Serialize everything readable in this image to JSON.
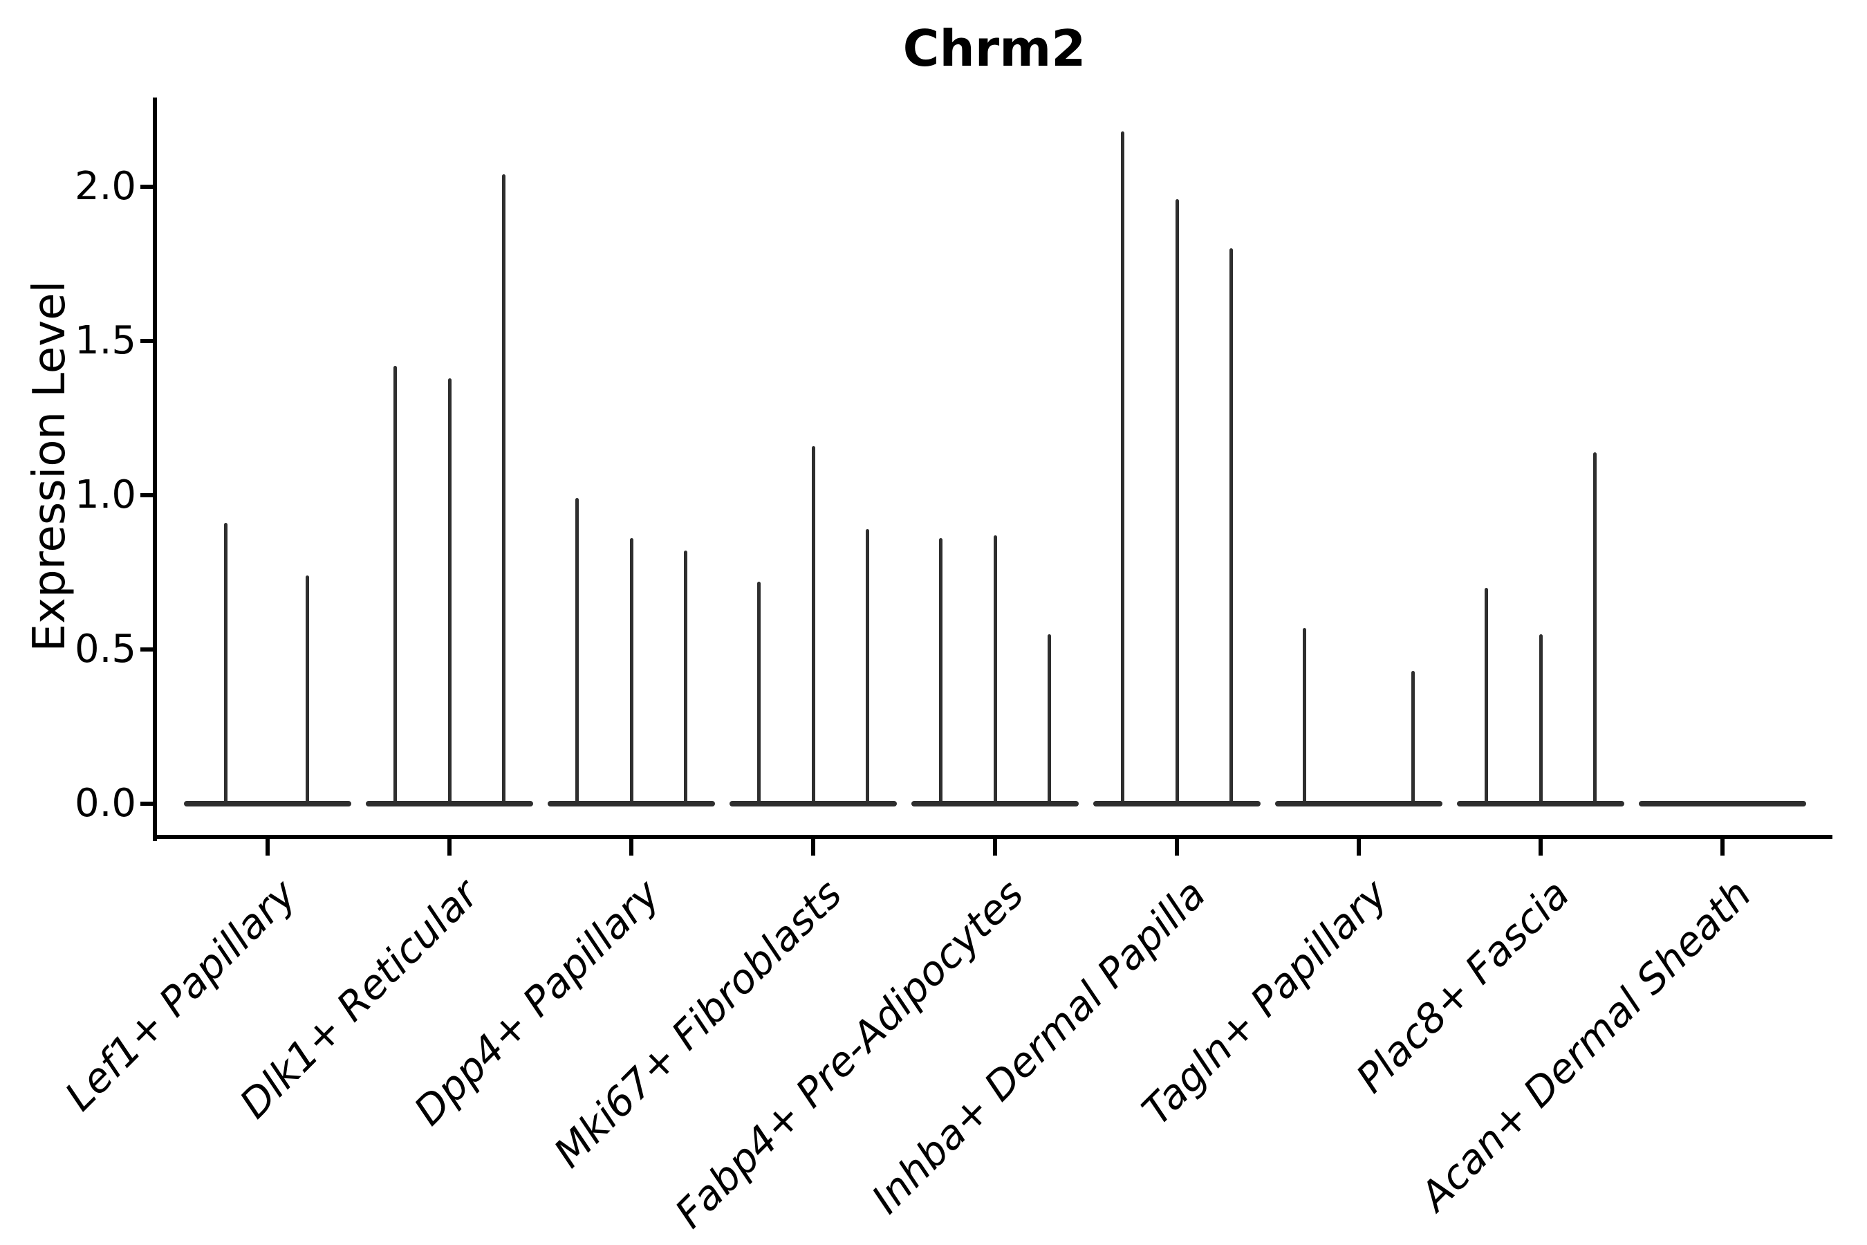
{
  "figure": {
    "title": "Chrm2"
  },
  "axes": {
    "ylabel": "Expression Level",
    "ytick_labels": [
      "0.0",
      "0.5",
      "1.0",
      "1.5",
      "2.0"
    ]
  },
  "chart_data": {
    "type": "violin",
    "title": "Chrm2",
    "xlabel": "",
    "ylabel": "Expression Level",
    "ylim": [
      -0.11,
      2.29
    ],
    "yticks": [
      0.0,
      0.5,
      1.0,
      1.5,
      2.0
    ],
    "grid": false,
    "legend_position": "none",
    "style": "collapsed violins: wide flat base at expression 0 with thin density spikes rising to the maximum expression per sub-violin",
    "categories": [
      "Lef1+ Papillary",
      "Dlk1+ Reticular",
      "Dpp4+ Papillary",
      "Mki67+ Fibroblasts",
      "Fabp4+ Pre-Adipocytes",
      "Inhba+ Dermal Papilla",
      "Tagln+ Papillary",
      "Plac8+ Fascia",
      "Acan+ Dermal Sheath"
    ],
    "groups": [
      {
        "category": "Lef1+ Papillary",
        "spikes": [
          {
            "dx": -0.23,
            "peak": 0.91
          },
          {
            "dx": 0.22,
            "peak": 0.74
          }
        ]
      },
      {
        "category": "Dlk1+ Reticular",
        "spikes": [
          {
            "dx": -0.3,
            "peak": 1.42
          },
          {
            "dx": 0.0,
            "peak": 1.38
          },
          {
            "dx": 0.3,
            "peak": 2.04
          }
        ]
      },
      {
        "category": "Dpp4+ Papillary",
        "spikes": [
          {
            "dx": -0.3,
            "peak": 0.99
          },
          {
            "dx": 0.0,
            "peak": 0.86
          },
          {
            "dx": 0.3,
            "peak": 0.82
          }
        ]
      },
      {
        "category": "Mki67+ Fibroblasts",
        "spikes": [
          {
            "dx": -0.3,
            "peak": 0.72
          },
          {
            "dx": 0.0,
            "peak": 1.16
          },
          {
            "dx": 0.3,
            "peak": 0.89
          }
        ]
      },
      {
        "category": "Fabp4+ Pre-Adipocytes",
        "spikes": [
          {
            "dx": -0.3,
            "peak": 0.86
          },
          {
            "dx": 0.0,
            "peak": 0.87
          },
          {
            "dx": 0.3,
            "peak": 0.55
          }
        ]
      },
      {
        "category": "Inhba+ Dermal Papilla",
        "spikes": [
          {
            "dx": -0.3,
            "peak": 2.18
          },
          {
            "dx": 0.0,
            "peak": 1.96
          },
          {
            "dx": 0.3,
            "peak": 1.8
          }
        ]
      },
      {
        "category": "Tagln+ Papillary",
        "spikes": [
          {
            "dx": -0.3,
            "peak": 0.57
          },
          {
            "dx": 0.3,
            "peak": 0.43
          }
        ]
      },
      {
        "category": "Plac8+ Fascia",
        "spikes": [
          {
            "dx": -0.3,
            "peak": 0.7
          },
          {
            "dx": 0.0,
            "peak": 0.55
          },
          {
            "dx": 0.3,
            "peak": 1.14
          }
        ]
      },
      {
        "category": "Acan+ Dermal Sheath",
        "spikes": []
      }
    ],
    "base_halfwidth_units": 0.46,
    "colors": {
      "violin": "#2e2e2e",
      "axis": "#000000",
      "text": "#000000",
      "background": "#ffffff"
    }
  }
}
